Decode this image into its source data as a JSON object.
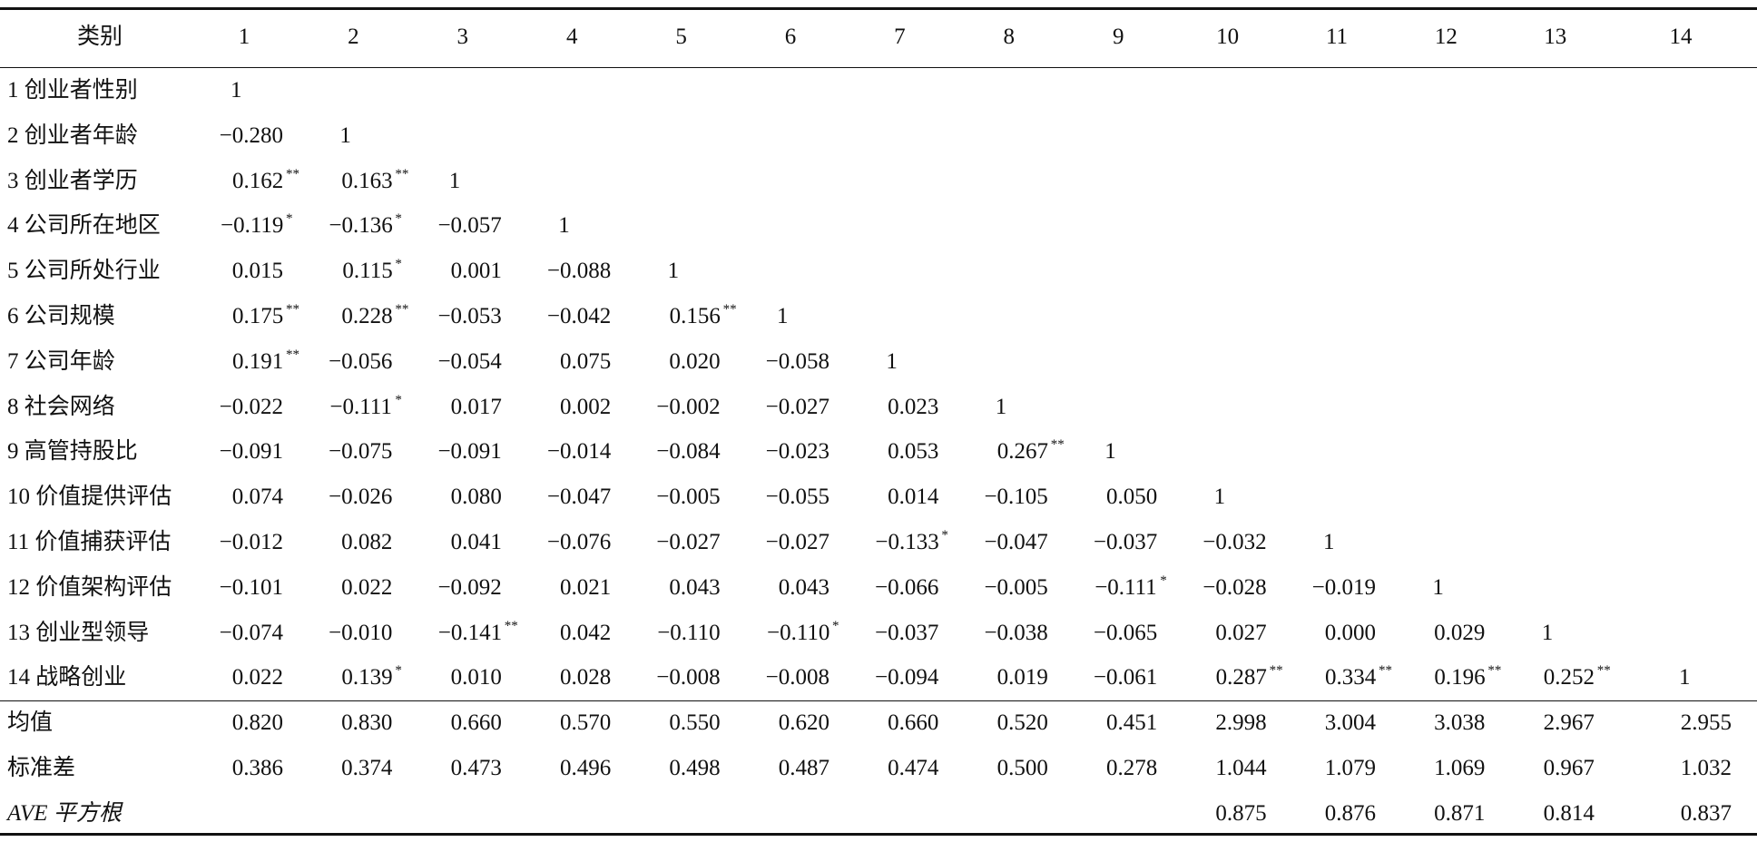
{
  "table": {
    "header": [
      "类别",
      "1",
      "2",
      "3",
      "4",
      "5",
      "6",
      "7",
      "8",
      "9",
      "10",
      "11",
      "12",
      "13",
      "14"
    ],
    "rows": [
      {
        "label": "1 创业者性别",
        "cells": [
          "1"
        ]
      },
      {
        "label": "2 创业者年龄",
        "cells": [
          "−0.280",
          "1"
        ]
      },
      {
        "label": "3 创业者学历",
        "cells": [
          {
            "text": "0.162",
            "sig": "**"
          },
          {
            "text": "0.163",
            "sig": "**"
          },
          "1"
        ]
      },
      {
        "label": "4 公司所在地区",
        "cells": [
          {
            "text": "−0.119",
            "sig": "*"
          },
          {
            "text": "−0.136",
            "sig": "*"
          },
          "−0.057",
          "1"
        ]
      },
      {
        "label": "5 公司所处行业",
        "cells": [
          "0.015",
          {
            "text": "0.115",
            "sig": "*"
          },
          "0.001",
          "−0.088",
          "1"
        ]
      },
      {
        "label": "6 公司规模",
        "cells": [
          {
            "text": "0.175",
            "sig": "**"
          },
          {
            "text": "0.228",
            "sig": "**"
          },
          "−0.053",
          "−0.042",
          {
            "text": "0.156",
            "sig": "**"
          },
          "1"
        ]
      },
      {
        "label": "7 公司年龄",
        "cells": [
          {
            "text": "0.191",
            "sig": "**"
          },
          "−0.056",
          "−0.054",
          "0.075",
          "0.020",
          "−0.058",
          "1"
        ]
      },
      {
        "label": "8 社会网络",
        "cells": [
          "−0.022",
          {
            "text": "−0.111",
            "sig": "*"
          },
          "0.017",
          "0.002",
          "−0.002",
          "−0.027",
          "0.023",
          "1"
        ]
      },
      {
        "label": "9 高管持股比",
        "cells": [
          "−0.091",
          "−0.075",
          "−0.091",
          "−0.014",
          "−0.084",
          "−0.023",
          "0.053",
          {
            "text": "0.267",
            "sig": "**"
          },
          "1"
        ]
      },
      {
        "label": "10 价值提供评估",
        "cells": [
          "0.074",
          "−0.026",
          "0.080",
          "−0.047",
          "−0.005",
          "−0.055",
          "0.014",
          "−0.105",
          "0.050",
          "1"
        ]
      },
      {
        "label": "11 价值捕获评估",
        "cells": [
          "−0.012",
          "0.082",
          "0.041",
          "−0.076",
          "−0.027",
          "−0.027",
          {
            "text": "−0.133",
            "sig": "*"
          },
          "−0.047",
          "−0.037",
          "−0.032",
          "1"
        ]
      },
      {
        "label": "12 价值架构评估",
        "cells": [
          "−0.101",
          "0.022",
          "−0.092",
          "0.021",
          "0.043",
          "0.043",
          "−0.066",
          "−0.005",
          {
            "text": "−0.111",
            "sig": "*"
          },
          "−0.028",
          "−0.019",
          "1"
        ]
      },
      {
        "label": "13 创业型领导",
        "cells": [
          "−0.074",
          "−0.010",
          {
            "text": "−0.141",
            "sig": "**"
          },
          "0.042",
          "−0.110",
          {
            "text": "−0.110",
            "sig": "*"
          },
          "−0.037",
          "−0.038",
          "−0.065",
          "0.027",
          "0.000",
          "0.029",
          "1"
        ]
      },
      {
        "label": "14 战略创业",
        "cells": [
          "0.022",
          {
            "text": "0.139",
            "sig": "*"
          },
          "0.010",
          "0.028",
          "−0.008",
          "−0.008",
          "−0.094",
          "0.019",
          "−0.061",
          {
            "text": "0.287",
            "sig": "**"
          },
          {
            "text": "0.334",
            "sig": "**"
          },
          {
            "text": "0.196",
            "sig": "**"
          },
          {
            "text": "0.252",
            "sig": "**"
          },
          "1"
        ]
      }
    ],
    "stats": [
      {
        "label": "均值",
        "cells": [
          "0.820",
          "0.830",
          "0.660",
          "0.570",
          "0.550",
          "0.620",
          "0.660",
          "0.520",
          "0.451",
          "2.998",
          "3.004",
          "3.038",
          "2.967",
          "2.955"
        ]
      },
      {
        "label": "标准差",
        "cells": [
          "0.386",
          "0.374",
          "0.473",
          "0.496",
          "0.498",
          "0.487",
          "0.474",
          "0.500",
          "0.278",
          "1.044",
          "1.079",
          "1.069",
          "0.967",
          "1.032"
        ]
      },
      {
        "label": "AVE 平方根",
        "cells": [
          null,
          null,
          null,
          null,
          null,
          null,
          null,
          null,
          null,
          "0.875",
          "0.876",
          "0.871",
          "0.814",
          "0.837"
        ]
      }
    ]
  }
}
